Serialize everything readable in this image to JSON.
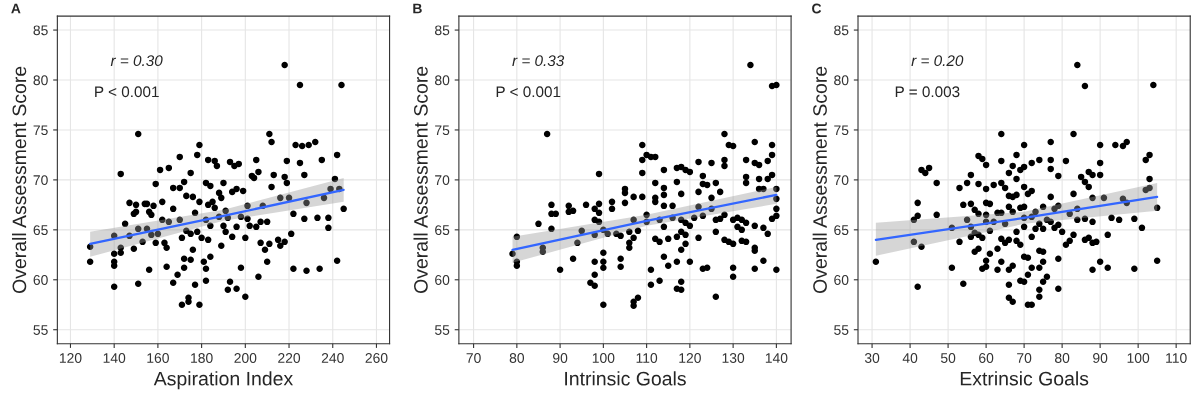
{
  "chart_data": [
    {
      "type": "scatter",
      "title": "A",
      "xlabel": "Aspiration Index",
      "ylabel": "Overall Assessment Score",
      "xlim": [
        114,
        266
      ],
      "ylim": [
        53.6,
        86.4
      ],
      "xticks": [
        120,
        140,
        160,
        180,
        200,
        220,
        240,
        260
      ],
      "yticks": [
        55,
        60,
        65,
        70,
        75,
        80,
        85
      ],
      "grid": true,
      "annotations": [
        "r = 0.30",
        "P < 0.001"
      ],
      "series": [
        {
          "color": "#000000",
          "marker": "circle",
          "x": [
            129,
            129,
            140,
            140,
            140,
            140,
            140,
            143,
            143,
            143,
            145,
            147,
            147,
            149,
            149,
            150,
            150,
            151,
            151,
            151,
            153,
            154,
            155,
            155,
            156,
            156,
            157,
            157,
            158,
            159,
            159,
            160,
            161,
            162,
            162,
            163,
            164,
            164,
            165,
            165,
            167,
            167,
            167,
            169,
            170,
            170,
            170,
            171,
            171,
            172,
            172,
            172,
            173,
            173,
            174,
            174,
            175,
            175,
            175,
            176,
            176,
            177,
            177,
            178,
            178,
            179,
            179,
            179,
            180,
            181,
            182,
            182,
            182,
            182,
            183,
            183,
            183,
            184,
            184,
            184,
            185,
            186,
            186,
            187,
            188,
            188,
            189,
            189,
            190,
            190,
            191,
            191,
            192,
            192,
            193,
            193,
            194,
            194,
            195,
            196,
            196,
            196,
            197,
            198,
            198,
            199,
            200,
            200,
            201,
            201,
            202,
            203,
            204,
            205,
            205,
            206,
            206,
            207,
            207,
            208,
            209,
            210,
            210,
            211,
            211,
            212,
            212,
            213,
            215,
            216,
            216,
            218,
            218,
            218,
            219,
            219,
            220,
            221,
            222,
            222,
            223,
            225,
            225,
            226,
            227,
            227,
            228,
            228,
            229,
            232,
            233,
            234,
            235,
            236,
            238,
            238,
            239,
            241,
            242,
            242,
            243,
            244,
            245
          ],
          "values": [
            63.3,
            61.8,
            64.4,
            62.6,
            61.8,
            61.4,
            59.3,
            70.6,
            63.2,
            62.7,
            65.6,
            64.4,
            67.7,
            66.6,
            63.1,
            66.8,
            67.5,
            74.6,
            65.1,
            59.6,
            63.8,
            67.6,
            67.6,
            65.1,
            66.8,
            61.0,
            66.5,
            64.5,
            67.4,
            69.6,
            63.7,
            64.6,
            71.0,
            67.8,
            66.0,
            63.7,
            63.2,
            61.3,
            71.2,
            65.8,
            69.2,
            67.1,
            59.7,
            60.5,
            72.3,
            69.2,
            66.0,
            64.2,
            57.5,
            69.8,
            62.1,
            61.2,
            68.4,
            64.9,
            58.2,
            57.8,
            70.7,
            64.6,
            62.0,
            68.3,
            63.0,
            66.7,
            59.5,
            72.5,
            64.8,
            73.5,
            67.8,
            57.5,
            64.2,
            61.8,
            69.7,
            66.0,
            61.1,
            59.9,
            72.0,
            67.5,
            64.0,
            69.4,
            65.4,
            62.3,
            67.8,
            71.9,
            67.2,
            71.4,
            68.7,
            66.3,
            63.4,
            68.2,
            69.7,
            65.4,
            66.9,
            64.8,
            66.2,
            59.0,
            71.8,
            59.8,
            68.8,
            64.3,
            71.4,
            69.1,
            65.3,
            59.1,
            71.6,
            66.3,
            61.2,
            68.9,
            64.2,
            58.3,
            67.4,
            66.1,
            65.4,
            70.4,
            70.2,
            72.0,
            65.3,
            70.8,
            60.3,
            65.8,
            63.7,
            67.4,
            63.0,
            65.8,
            61.8,
            74.6,
            63.6,
            73.8,
            69.3,
            70.5,
            64.0,
            68.2,
            63.4,
            81.5,
            70.3,
            63.8,
            71.9,
            69.7,
            68.2,
            64.6,
            66.6,
            61.1,
            73.5,
            79.5,
            71.7,
            73.4,
            70.5,
            66.1,
            67.7,
            60.9,
            73.5,
            73.8,
            66.2,
            61.1,
            72.0,
            68.2,
            66.2,
            65.2,
            69.1,
            70.1,
            72.5,
            61.9,
            69.1,
            79.5,
            67.1
          ]
        },
        {
          "type": "line",
          "color": "#3366ff",
          "x": [
            129,
            190,
            245
          ],
          "values": [
            63.6,
            66.4,
            69.0
          ],
          "lower": [
            62.3,
            65.9,
            67.8
          ],
          "upper": [
            64.8,
            67.0,
            70.2
          ]
        }
      ]
    },
    {
      "type": "scatter",
      "title": "B",
      "xlabel": "Intrinsic Goals",
      "ylabel": "Overall Assessment Score",
      "xlim": [
        66.6,
        143.4
      ],
      "ylim": [
        53.6,
        86.4
      ],
      "xticks": [
        70,
        80,
        90,
        100,
        110,
        120,
        130,
        140
      ],
      "yticks": [
        55,
        60,
        65,
        70,
        75,
        80,
        85
      ],
      "grid": true,
      "annotations": [
        "r = 0.33",
        "P < 0.001"
      ],
      "series": [
        {
          "color": "#000000",
          "marker": "circle",
          "x": [
            79,
            80,
            80,
            80,
            85,
            86,
            86,
            87,
            88,
            88,
            88,
            89,
            90,
            92,
            92,
            93,
            93,
            94,
            95,
            96,
            97,
            98,
            98,
            98,
            98,
            98,
            98,
            99,
            99,
            99,
            99,
            100,
            100,
            100,
            100,
            100,
            101,
            102,
            102,
            103,
            104,
            104,
            104,
            105,
            105,
            105,
            106,
            106,
            106,
            107,
            107,
            107,
            107,
            107,
            108,
            108,
            109,
            109,
            109,
            109,
            110,
            110,
            110,
            111,
            111,
            111,
            112,
            112,
            112,
            112,
            112,
            113,
            113,
            113,
            114,
            114,
            114,
            114,
            114,
            114,
            115,
            115,
            116,
            116,
            117,
            117,
            117,
            117,
            117,
            118,
            118,
            118,
            118,
            118,
            118,
            118,
            119,
            119,
            119,
            119,
            120,
            120,
            120,
            121,
            122,
            122,
            122,
            122,
            123,
            123,
            123,
            123,
            124,
            124,
            125,
            125,
            125,
            126,
            126,
            126,
            126,
            127,
            127,
            128,
            128,
            128,
            128,
            128,
            129,
            129,
            130,
            130,
            130,
            130,
            130,
            131,
            131,
            132,
            132,
            132,
            133,
            133,
            133,
            133,
            133,
            134,
            135,
            135,
            135,
            135,
            135,
            135,
            136,
            136,
            136,
            137,
            137,
            137,
            138,
            138,
            138,
            139,
            139,
            139,
            139,
            139,
            140,
            140,
            140,
            140,
            140,
            140
          ],
          "values": [
            62.6,
            64.3,
            61.8,
            61.4,
            65.6,
            63.2,
            62.8,
            74.6,
            67.5,
            66.6,
            65.1,
            66.6,
            61.0,
            67.4,
            66.8,
            66.9,
            62.1,
            63.7,
            64.9,
            67.5,
            59.7,
            67.1,
            66.0,
            64.5,
            61.8,
            60.5,
            59.4,
            70.6,
            67.6,
            65.8,
            66.7,
            65.0,
            62.7,
            61.8,
            61.2,
            57.5,
            64.6,
            67.8,
            67.1,
            64.6,
            64.4,
            62.1,
            61.3,
            69.1,
            67.7,
            68.7,
            64.8,
            63.7,
            63.2,
            68.3,
            66.0,
            64.2,
            57.8,
            57.4,
            64.9,
            58.2,
            73.5,
            72.0,
            70.7,
            68.3,
            72.5,
            66.5,
            65.8,
            72.3,
            61.0,
            59.5,
            72.3,
            69.7,
            68.2,
            67.8,
            64.1,
            66.0,
            63.8,
            59.9,
            71.0,
            69.2,
            68.5,
            67.4,
            65.3,
            62.3,
            64.1,
            61.4,
            66.2,
            67.4,
            71.2,
            69.8,
            64.3,
            61.8,
            59.1,
            71.3,
            68.6,
            66.0,
            64.8,
            63.0,
            59.8,
            59.0,
            71.0,
            65.7,
            64.5,
            63.6,
            70.8,
            65.4,
            61.8,
            66.2,
            71.8,
            68.8,
            67.3,
            64.2,
            70.4,
            69.6,
            66.4,
            61.1,
            61.2,
            69.5,
            71.7,
            67.1,
            68.2,
            69.7,
            66.0,
            64.8,
            58.3,
            66.1,
            68.8,
            74.6,
            72.0,
            71.4,
            66.5,
            64.0,
            73.5,
            63.8,
            73.4,
            66.0,
            63.6,
            61.2,
            60.3,
            66.2,
            65.3,
            66.0,
            65.0,
            63.9,
            72.0,
            70.3,
            69.7,
            65.7,
            63.8,
            81.5,
            73.8,
            71.7,
            65.4,
            63.2,
            62.9,
            61.1,
            71.5,
            70.1,
            69.1,
            69.1,
            65.2,
            61.9,
            71.9,
            70.1,
            64.6,
            73.5,
            72.5,
            79.4,
            70.5,
            66.1,
            79.5,
            69.1,
            68.1,
            67.1,
            66.4,
            61.0
          ]
        },
        {
          "type": "line",
          "color": "#3366ff",
          "x": [
            79,
            110,
            140
          ],
          "values": [
            63.0,
            65.9,
            68.5
          ],
          "lower": [
            61.7,
            65.4,
            67.6
          ],
          "upper": [
            64.3,
            66.5,
            69.3
          ]
        }
      ]
    },
    {
      "type": "scatter",
      "title": "C",
      "xlabel": "Extrinsic Goals",
      "ylabel": "Overall Assessment Score",
      "xlim": [
        26.3,
        113.7
      ],
      "ylim": [
        53.6,
        86.4
      ],
      "xticks": [
        30,
        40,
        50,
        60,
        70,
        80,
        90,
        100,
        110
      ],
      "yticks": [
        55,
        60,
        65,
        70,
        75,
        80,
        85
      ],
      "grid": true,
      "annotations": [
        "r = 0.20",
        "P = 0.003"
      ],
      "series": [
        {
          "color": "#000000",
          "marker": "circle",
          "x": [
            31,
            41,
            41,
            42,
            42,
            42,
            43,
            43,
            44,
            45,
            47,
            47,
            51,
            51,
            53,
            53,
            54,
            54,
            55,
            55,
            56,
            56,
            56,
            56,
            57,
            57,
            57,
            58,
            58,
            58,
            58,
            58,
            59,
            59,
            59,
            60,
            60,
            60,
            60,
            60,
            60,
            60,
            61,
            61,
            61,
            62,
            62,
            63,
            63,
            63,
            64,
            64,
            64,
            64,
            64,
            64,
            65,
            65,
            65,
            66,
            66,
            66,
            66,
            66,
            66,
            66,
            67,
            67,
            67,
            67,
            67,
            68,
            68,
            68,
            68,
            68,
            69,
            69,
            69,
            69,
            70,
            70,
            70,
            70,
            70,
            70,
            70,
            70,
            71,
            71,
            71,
            71,
            72,
            72,
            72,
            72,
            72,
            72,
            73,
            73,
            74,
            74,
            74,
            74,
            74,
            74,
            75,
            75,
            75,
            75,
            75,
            76,
            76,
            77,
            77,
            77,
            77,
            77,
            78,
            78,
            79,
            79,
            79,
            79,
            79,
            80,
            81,
            81,
            82,
            82,
            83,
            83,
            83,
            84,
            84,
            84,
            85,
            86,
            86,
            86,
            86,
            87,
            87,
            87,
            88,
            88,
            88,
            88,
            88,
            89,
            90,
            90,
            90,
            90,
            91,
            92,
            92,
            93,
            94,
            95,
            96,
            96,
            97,
            97,
            99,
            99,
            101,
            102,
            102,
            103,
            103,
            103,
            104,
            105,
            105
          ],
          "values": [
            61.8,
            66.0,
            63.8,
            67.7,
            66.4,
            59.3,
            71.0,
            63.3,
            70.7,
            71.2,
            69.7,
            66.5,
            65.2,
            61.2,
            69.2,
            63.8,
            67.5,
            59.6,
            69.7,
            66.0,
            70.5,
            67.6,
            65.3,
            64.3,
            67.0,
            64.7,
            62.8,
            72.4,
            69.6,
            66.6,
            64.5,
            63.1,
            72.1,
            64.2,
            61.1,
            71.5,
            69.1,
            67.7,
            66.5,
            65.8,
            61.9,
            61.3,
            67.6,
            64.9,
            62.6,
            69.5,
            65.8,
            66.7,
            63.1,
            61.0,
            74.6,
            71.9,
            69.7,
            66.7,
            64.1,
            61.8,
            69.2,
            65.6,
            63.7,
            70.7,
            68.4,
            67.3,
            64.0,
            61.0,
            59.5,
            58.2,
            71.4,
            68.3,
            66.8,
            61.4,
            57.8,
            72.5,
            70.1,
            68.5,
            64.8,
            63.9,
            71.0,
            67.2,
            63.5,
            59.9,
            73.5,
            71.3,
            69.3,
            67.3,
            66.2,
            65.3,
            62.3,
            59.8,
            68.6,
            62.2,
            60.5,
            57.5,
            71.7,
            68.9,
            66.3,
            64.3,
            61.2,
            57.5,
            66.8,
            65.1,
            72.0,
            65.6,
            62.9,
            61.2,
            59.0,
            58.3,
            67.3,
            65.1,
            62.8,
            61.8,
            59.8,
            66.0,
            60.3,
            73.8,
            72.0,
            71.1,
            68.3,
            65.8,
            67.1,
            65.2,
            70.4,
            67.4,
            65.5,
            62.1,
            59.1,
            64.8,
            71.9,
            63.5,
            63.9,
            66.6,
            74.6,
            68.6,
            64.5,
            81.5,
            67.1,
            66.0,
            70.3,
            79.4,
            69.8,
            66.1,
            64.0,
            70.8,
            69.3,
            64.2,
            70.5,
            68.2,
            65.8,
            63.7,
            61.0,
            63.8,
            73.5,
            71.7,
            70.5,
            61.8,
            68.2,
            64.5,
            61.2,
            66.2,
            73.5,
            66.0,
            73.4,
            68.1,
            73.8,
            67.7,
            66.1,
            61.1,
            65.2,
            72.0,
            69.0,
            72.5,
            70.1,
            69.2,
            79.5,
            67.2,
            61.9
          ]
        },
        {
          "type": "line",
          "color": "#3366ff",
          "x": [
            31,
            70,
            105
          ],
          "values": [
            64.0,
            66.2,
            68.3
          ],
          "lower": [
            62.4,
            65.6,
            66.9
          ],
          "upper": [
            65.7,
            66.8,
            69.7
          ]
        }
      ]
    }
  ]
}
